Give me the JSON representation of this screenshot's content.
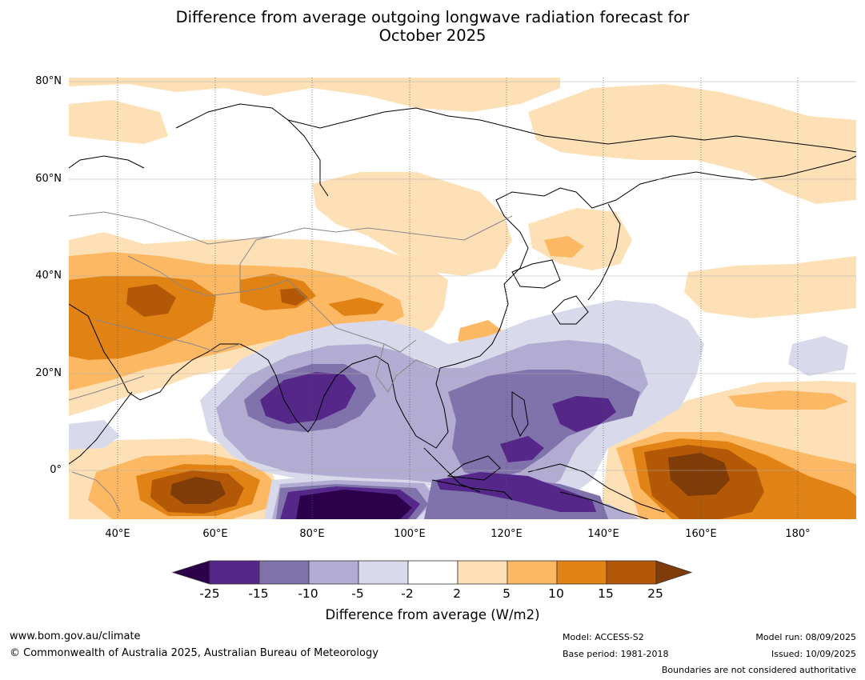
{
  "title": {
    "line1": "Difference from average outgoing longwave radiation forecast for",
    "line2": "October 2025"
  },
  "map": {
    "lat_labels": [
      "80°N",
      "60°N",
      "40°N",
      "20°N",
      "0°"
    ],
    "lon_labels": [
      "40°E",
      "60°E",
      "80°E",
      "100°E",
      "120°E",
      "140°E",
      "160°E",
      "180°"
    ],
    "extent": {
      "lon_min": 30,
      "lon_max": 192,
      "lat_min": -10,
      "lat_max": 81
    },
    "colors": {
      "lt_m25": "#2d004b",
      "m25_m15": "#542788",
      "m15_m10": "#8073ac",
      "m10_m5": "#b2abd2",
      "m5_m2": "#d8daeb",
      "m2_2": "#ffffff",
      "p2_p5": "#fee0b6",
      "p5_p10": "#fdb863",
      "p10_p15": "#e08214",
      "p15_p25": "#b35806",
      "gt_p25": "#7f3b08"
    }
  },
  "colorbar": {
    "ticks": [
      "-25",
      "-15",
      "-10",
      "-5",
      "-2",
      "2",
      "5",
      "10",
      "15",
      "25"
    ],
    "label": "Difference from average (W/m2)",
    "colors": [
      "#2d004b",
      "#542788",
      "#8073ac",
      "#b2abd2",
      "#d8daeb",
      "#ffffff",
      "#fee0b6",
      "#fdb863",
      "#e08214",
      "#b35806",
      "#7f3b08"
    ]
  },
  "footer": {
    "website": "www.bom.gov.au/climate",
    "copyright": "© Commonwealth of Australia 2025, Australian Bureau of Meteorology",
    "model": "Model: ACCESS-S2",
    "base_period": "Base period: 1981-2018",
    "model_run": "Model run: 08/09/2025",
    "issued": "Issued: 10/09/2025",
    "disclaimer": "Boundaries are not considered authoritative"
  }
}
